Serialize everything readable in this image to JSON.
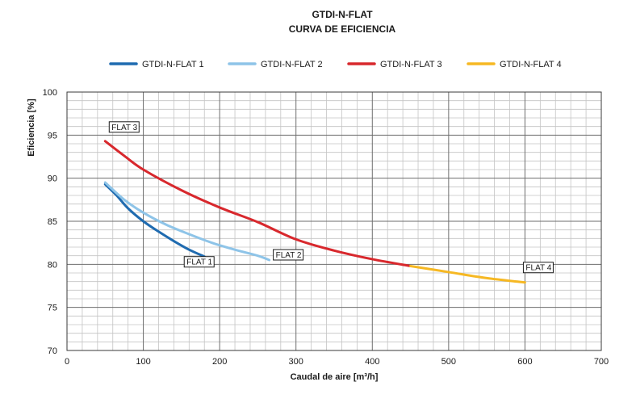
{
  "chart_data": {
    "type": "line",
    "title": "GTDI-N-FLAT",
    "subtitle": "CURVA DE EFICIENCIA",
    "xlabel": "Caudal de aire [m³/h]",
    "ylabel": "Eficiencia  [%]",
    "xlim": [
      0,
      700
    ],
    "ylim": [
      70,
      100
    ],
    "x_ticks": [
      "0",
      "100",
      "200",
      "300",
      "400",
      "500",
      "600",
      "700"
    ],
    "y_ticks": [
      "70",
      "75",
      "80",
      "85",
      "90",
      "95",
      "100"
    ],
    "grid": true,
    "minor_grid_x_step": 20,
    "minor_grid_y_step": 1,
    "legend_position": "top",
    "series": [
      {
        "name": "GTDI-N-FLAT 1",
        "color": "#1f6bb0",
        "label": "FLAT 1",
        "points": [
          [
            50,
            89.3
          ],
          [
            65,
            88.0
          ],
          [
            80,
            86.5
          ],
          [
            100,
            85.0
          ],
          [
            120,
            83.8
          ],
          [
            140,
            82.7
          ],
          [
            160,
            81.7
          ],
          [
            180,
            80.9
          ]
        ]
      },
      {
        "name": "GTDI-N-FLAT 2",
        "color": "#8ec4e8",
        "label": "FLAT 2",
        "points": [
          [
            50,
            89.5
          ],
          [
            75,
            87.5
          ],
          [
            100,
            86.0
          ],
          [
            130,
            84.6
          ],
          [
            160,
            83.5
          ],
          [
            190,
            82.5
          ],
          [
            220,
            81.7
          ],
          [
            250,
            81.0
          ],
          [
            265,
            80.5
          ]
        ]
      },
      {
        "name": "GTDI-N-FLAT 3",
        "color": "#d8282d",
        "label": "FLAT 3",
        "points": [
          [
            50,
            94.3
          ],
          [
            75,
            92.6
          ],
          [
            100,
            91.0
          ],
          [
            150,
            88.6
          ],
          [
            200,
            86.6
          ],
          [
            250,
            84.9
          ],
          [
            300,
            82.9
          ],
          [
            350,
            81.6
          ],
          [
            400,
            80.6
          ],
          [
            450,
            79.8
          ]
        ]
      },
      {
        "name": "GTDI-N-FLAT 4",
        "color": "#f6b823",
        "label": "FLAT 4",
        "points": [
          [
            450,
            79.8
          ],
          [
            500,
            79.1
          ],
          [
            550,
            78.4
          ],
          [
            600,
            77.9
          ]
        ]
      }
    ]
  }
}
